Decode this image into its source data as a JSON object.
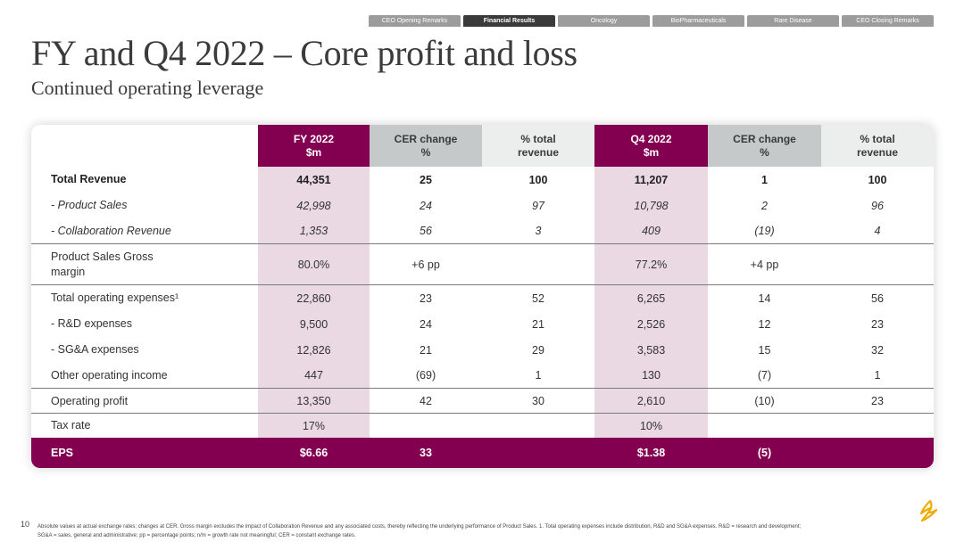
{
  "nav": {
    "tabs": [
      "CEO Opening Remarks",
      "Financial Results",
      "Oncology",
      "BioPharmaceuticals",
      "Rare Disease",
      "CEO Closing Remarks"
    ],
    "active": "Financial Results"
  },
  "title": "FY and Q4 2022 – Core profit and loss",
  "subtitle": "Continued operating leverage",
  "colors": {
    "maroon": "#830051",
    "pink": "#ead8e3",
    "gray": "#c6c9c9",
    "lightgray": "#eceeee",
    "logo": "#f0ab00"
  },
  "table": {
    "headers": [
      [
        "FY 2022",
        "$m"
      ],
      [
        "CER change",
        "%"
      ],
      [
        "% total",
        "revenue"
      ],
      [
        "Q4 2022",
        "$m"
      ],
      [
        "CER change",
        "%"
      ],
      [
        "% total",
        "revenue"
      ]
    ],
    "rows": [
      {
        "label": "Total Revenue",
        "cells": [
          "44,351",
          "25",
          "100",
          "11,207",
          "1",
          "100"
        ]
      },
      {
        "label": "- Product Sales",
        "cells": [
          "42,998",
          "24",
          "97",
          "10,798",
          "2",
          "96"
        ]
      },
      {
        "label": "- Collaboration Revenue",
        "cells": [
          "1,353",
          "56",
          "3",
          "409",
          "(19)",
          "4"
        ]
      },
      {
        "label": "Product Sales Gross margin",
        "cells": [
          "80.0%",
          "+6 pp",
          "",
          "77.2%",
          "+4 pp",
          ""
        ]
      },
      {
        "label": "Total operating expenses¹",
        "cells": [
          "22,860",
          "23",
          "52",
          "6,265",
          "14",
          "56"
        ]
      },
      {
        "label": "- R&D expenses",
        "cells": [
          "9,500",
          "24",
          "21",
          "2,526",
          "12",
          "23"
        ]
      },
      {
        "label": "- SG&A expenses",
        "cells": [
          "12,826",
          "21",
          "29",
          "3,583",
          "15",
          "32"
        ]
      },
      {
        "label": "Other operating income",
        "cells": [
          "447",
          "(69)",
          "1",
          "130",
          "(7)",
          "1"
        ]
      },
      {
        "label": "Operating profit",
        "cells": [
          "13,350",
          "42",
          "30",
          "2,610",
          "(10)",
          "23"
        ]
      },
      {
        "label": "Tax rate",
        "cells": [
          "17%",
          "",
          "",
          "10%",
          "",
          ""
        ]
      },
      {
        "label": "EPS",
        "cells": [
          "$6.66",
          "33",
          "",
          "$1.38",
          "(5)",
          ""
        ]
      }
    ]
  },
  "page_number": "10",
  "footnote": "Absolute values at actual exchange rates; changes at CER. Gross margin excludes the impact of Collaboration Revenue and any associated costs, thereby reflecting the underlying performance of Product Sales. 1. Total operating expenses include distribution, R&D and SG&A expenses.  R&D = research and development; SG&A = sales, general and administrative; pp = percentage points; n/m = growth rate not meaningful; CER = constant exchange rates.",
  "logo_icon": "astrazeneca-logo-icon"
}
